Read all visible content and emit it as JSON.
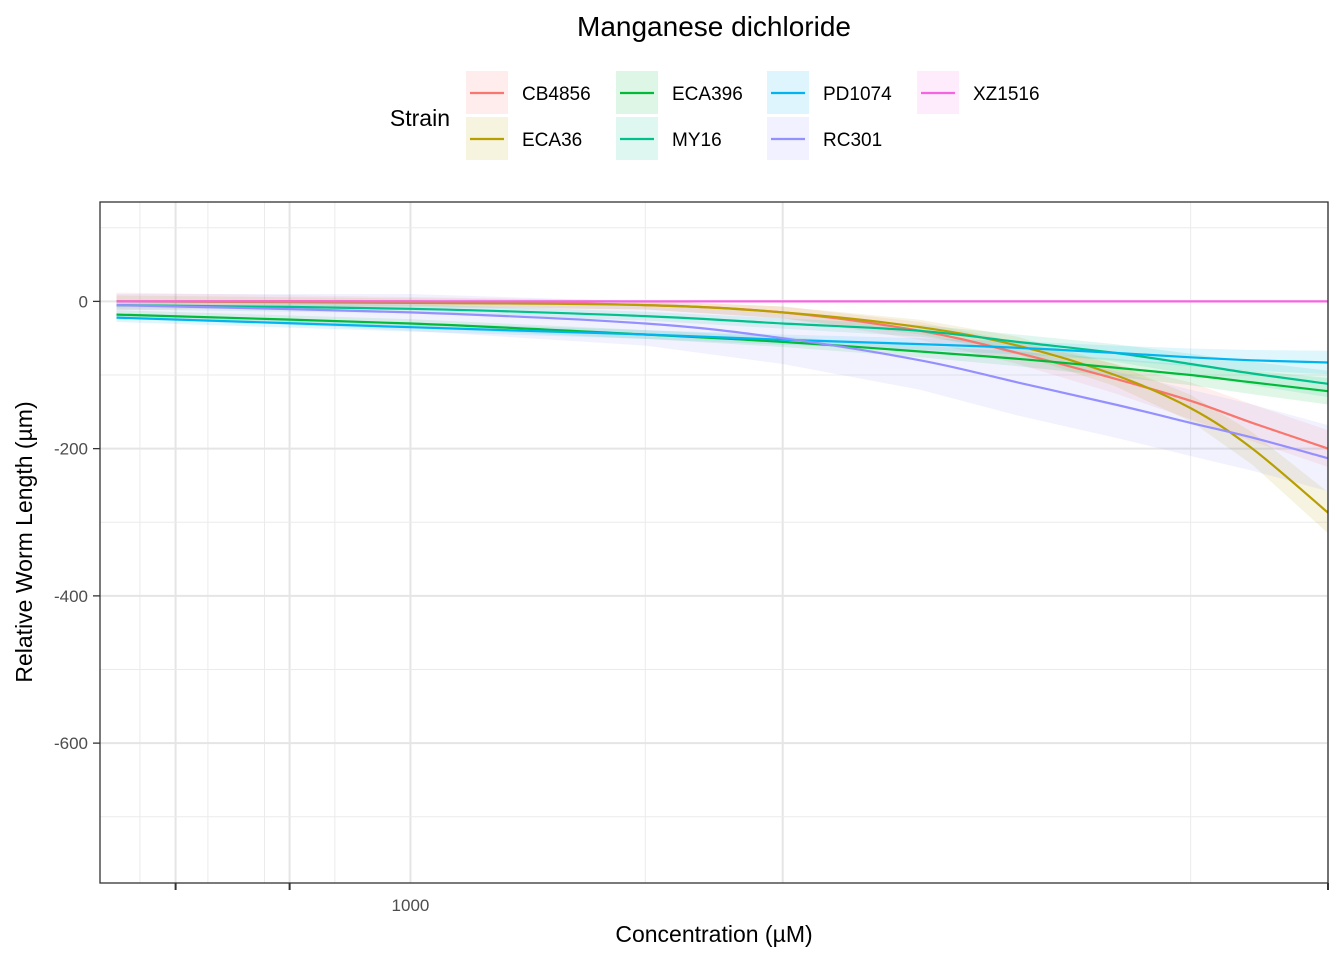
{
  "chart_data": {
    "type": "line",
    "title": "Manganese dichloride",
    "xlabel": "Concentration (µM)",
    "ylabel": "Relative Worm Length (µm)",
    "x_scale": "log10",
    "xlim": [
      400,
      15000
    ],
    "ylim": [
      -790,
      135
    ],
    "x_ticks": [
      {
        "value": 1000,
        "label": "1000"
      }
    ],
    "y_ticks": [
      {
        "value": 0,
        "label": "0"
      },
      {
        "value": -200,
        "label": "-200"
      },
      {
        "value": -400,
        "label": "-400"
      },
      {
        "value": -600,
        "label": "-600"
      }
    ],
    "grid": true,
    "legend": {
      "title": "Strain",
      "position": "top"
    },
    "series": [
      {
        "name": "CB4856",
        "color": "#F8766D",
        "x": [
          420,
          1000,
          2000,
          3000,
          4500,
          6000,
          8000,
          10000,
          12000,
          15000
        ],
        "y": [
          0,
          0,
          -5,
          -15,
          -40,
          -70,
          -105,
          -135,
          -165,
          -200
        ],
        "band": [
          12,
          6,
          6,
          8,
          12,
          15,
          20,
          25,
          25,
          25
        ]
      },
      {
        "name": "ECA36",
        "color": "#B79F00",
        "x": [
          420,
          1000,
          2000,
          3000,
          4500,
          6000,
          8000,
          10000,
          12000,
          15000
        ],
        "y": [
          0,
          -2,
          -5,
          -15,
          -35,
          -60,
          -100,
          -145,
          -200,
          -287
        ],
        "band": [
          8,
          6,
          6,
          8,
          10,
          12,
          15,
          18,
          22,
          28
        ]
      },
      {
        "name": "ECA396",
        "color": "#00BA38",
        "x": [
          420,
          1000,
          2000,
          3000,
          4500,
          6000,
          8000,
          10000,
          12000,
          15000
        ],
        "y": [
          -18,
          -30,
          -45,
          -55,
          -68,
          -78,
          -90,
          -100,
          -110,
          -122
        ],
        "band": [
          6,
          6,
          6,
          7,
          8,
          10,
          12,
          14,
          16,
          18
        ]
      },
      {
        "name": "MY16",
        "color": "#00C08B",
        "x": [
          420,
          1000,
          2000,
          3000,
          4500,
          6000,
          8000,
          10000,
          12000,
          15000
        ],
        "y": [
          -5,
          -10,
          -20,
          -30,
          -40,
          -55,
          -70,
          -85,
          -98,
          -112
        ],
        "band": [
          6,
          6,
          6,
          7,
          8,
          10,
          12,
          14,
          16,
          18
        ]
      },
      {
        "name": "PD1074",
        "color": "#00B4EF",
        "x": [
          420,
          1000,
          2000,
          3000,
          4500,
          6000,
          8000,
          10000,
          12000,
          15000
        ],
        "y": [
          -22,
          -35,
          -45,
          -52,
          -58,
          -63,
          -70,
          -76,
          -80,
          -83
        ],
        "band": [
          6,
          6,
          6,
          7,
          8,
          9,
          10,
          12,
          14,
          16
        ]
      },
      {
        "name": "RC301",
        "color": "#9590FF",
        "x": [
          420,
          1000,
          2000,
          3000,
          4500,
          6000,
          8000,
          10000,
          12000,
          15000
        ],
        "y": [
          -5,
          -15,
          -30,
          -50,
          -80,
          -110,
          -140,
          -165,
          -185,
          -213
        ],
        "band": [
          15,
          25,
          30,
          35,
          40,
          45,
          45,
          45,
          45,
          45
        ]
      },
      {
        "name": "XZ1516",
        "color": "#F564E3",
        "x": [
          420,
          1000,
          2000,
          3000,
          4500,
          6000,
          8000,
          10000,
          12000,
          15000
        ],
        "y": [
          0,
          0,
          0,
          0,
          0,
          0,
          0,
          0,
          0,
          0
        ],
        "band": [
          1,
          1,
          1,
          1,
          1,
          1,
          1,
          1,
          1,
          1
        ]
      }
    ]
  }
}
